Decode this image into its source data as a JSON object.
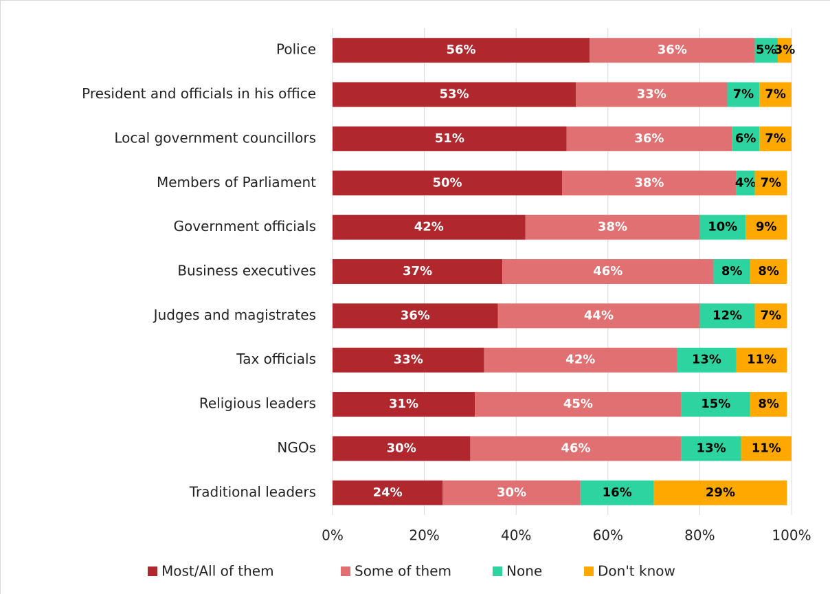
{
  "chart_data": {
    "type": "stacked-bar-horizontal",
    "categories": [
      "Police",
      "President and officials in his office",
      "Local government councillors",
      "Members of Parliament",
      "Government officials",
      "Business executives",
      "Judges and magistrates",
      "Tax officials",
      "Religious leaders",
      "NGOs",
      "Traditional leaders"
    ],
    "series": [
      {
        "name": "Most/All of them",
        "color": "#b0282e",
        "label_color": "#ffffff",
        "values": [
          56,
          53,
          51,
          50,
          42,
          37,
          36,
          33,
          31,
          30,
          24
        ],
        "value_labels": [
          "56%",
          "53%",
          "51%",
          "50%",
          "42%",
          "37%",
          "36%",
          "33%",
          "31%",
          "30%",
          "24%"
        ]
      },
      {
        "name": "Some of them",
        "color": "#e07072",
        "label_color": "#ffffff",
        "values": [
          36,
          33,
          36,
          38,
          38,
          46,
          44,
          42,
          45,
          46,
          30
        ],
        "value_labels": [
          "36%",
          "33%",
          "36%",
          "38%",
          "38%",
          "46%",
          "44%",
          "42%",
          "45%",
          "46%",
          "30%"
        ]
      },
      {
        "name": "None",
        "color": "#2dd4a0",
        "label_color": "#000000",
        "values": [
          5,
          7,
          6,
          4,
          10,
          8,
          12,
          13,
          15,
          13,
          16
        ],
        "value_labels": [
          "5%",
          "7%",
          "6%",
          "4%",
          "10%",
          "8%",
          "12%",
          "13%",
          "15%",
          "13%",
          "16%"
        ]
      },
      {
        "name": "Don't know",
        "color": "#ffa800",
        "label_color": "#000000",
        "values": [
          3,
          7,
          7,
          7,
          9,
          8,
          7,
          11,
          8,
          11,
          29
        ],
        "value_labels": [
          "3%",
          "7%",
          "7%",
          "7%",
          "9%",
          "8%",
          "7%",
          "11%",
          "8%",
          "11%",
          "29%"
        ]
      }
    ],
    "xlim": [
      0,
      100
    ],
    "xticks": [
      {
        "value": 0,
        "label": "0%"
      },
      {
        "value": 20,
        "label": "20%"
      },
      {
        "value": 40,
        "label": "40%"
      },
      {
        "value": 60,
        "label": "60%"
      },
      {
        "value": 80,
        "label": "80%"
      },
      {
        "value": 100,
        "label": "100%"
      }
    ],
    "grid": true,
    "legend": "bottom"
  }
}
